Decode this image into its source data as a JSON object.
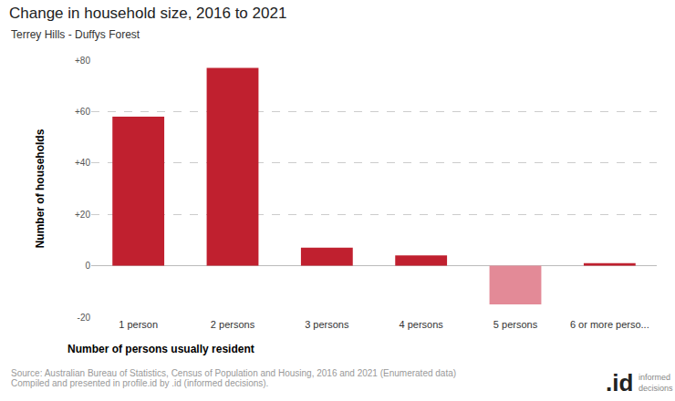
{
  "chart_data": {
    "type": "bar",
    "title": "Change in household size, 2016 to 2021",
    "subtitle": "Terrey Hills - Duffys Forest",
    "x_label": "Number of persons usually resident",
    "y_label": "Number of households",
    "categories": [
      "1 person",
      "2 persons",
      "3 persons",
      "4 persons",
      "5 persons",
      "6 or more perso..."
    ],
    "values": [
      58,
      77,
      7,
      4,
      -15,
      1
    ],
    "colors": [
      "#c0202f",
      "#c0202f",
      "#c0202f",
      "#c0202f",
      "#e38a97",
      "#c0202f"
    ],
    "ylim": [
      -20,
      80
    ],
    "yticks": [
      -20,
      0,
      {
        "value": 20,
        "label": "+20"
      },
      {
        "value": 40,
        "label": "+40"
      },
      {
        "value": 60,
        "label": "+60"
      },
      {
        "value": 80,
        "label": "+80"
      }
    ],
    "grid": true,
    "source": [
      "Source: Australian Bureau of Statistics, Census of Population and Housing, 2016 and 2021 (Enumerated data)",
      "Compiled and presented in profile.id by .id (informed decisions)."
    ],
    "logo": [
      ".id",
      "informed decisions"
    ]
  }
}
